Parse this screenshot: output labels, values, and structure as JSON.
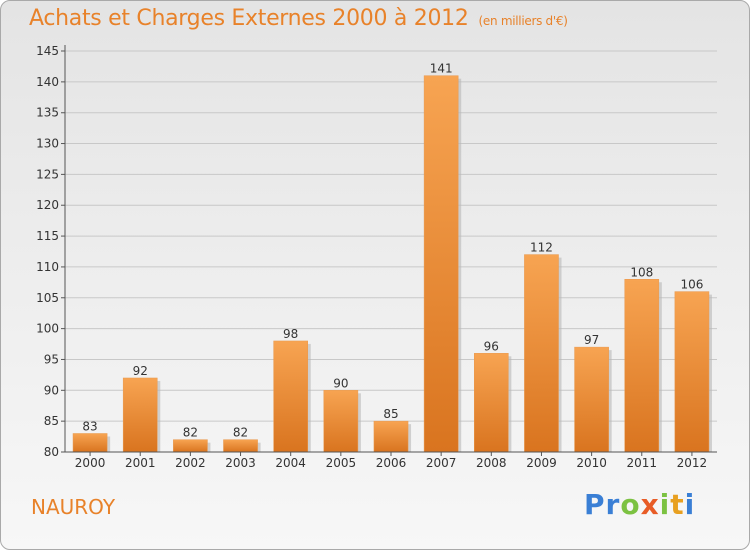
{
  "header": {
    "title": "Achats et Charges Externes 2000 à 2012",
    "unit": "(en milliers d'€)"
  },
  "footer": {
    "commune": "NAUROY",
    "logo_letters": [
      {
        "char": "P",
        "color": "#3a7fd5"
      },
      {
        "char": "r",
        "color": "#3a7fd5"
      },
      {
        "char": "o",
        "color": "#7cc242"
      },
      {
        "char": "x",
        "color": "#e85c26"
      },
      {
        "char": "i",
        "color": "#7cc242"
      },
      {
        "char": "t",
        "color": "#e8a020"
      },
      {
        "char": "i",
        "color": "#3a7fd5"
      }
    ]
  },
  "chart_data": {
    "type": "bar",
    "categories": [
      "2000",
      "2001",
      "2002",
      "2003",
      "2004",
      "2005",
      "2006",
      "2007",
      "2008",
      "2009",
      "2010",
      "2011",
      "2012"
    ],
    "values": [
      83,
      92,
      82,
      82,
      98,
      90,
      85,
      141,
      96,
      112,
      97,
      108,
      106
    ],
    "title": "Achats et Charges Externes 2000 à 2012",
    "ylim": [
      80,
      145
    ],
    "yticks": [
      80,
      85,
      90,
      95,
      100,
      105,
      110,
      115,
      120,
      125,
      130,
      135,
      140,
      145
    ],
    "grid": true,
    "bar_color": "#f0923a"
  }
}
